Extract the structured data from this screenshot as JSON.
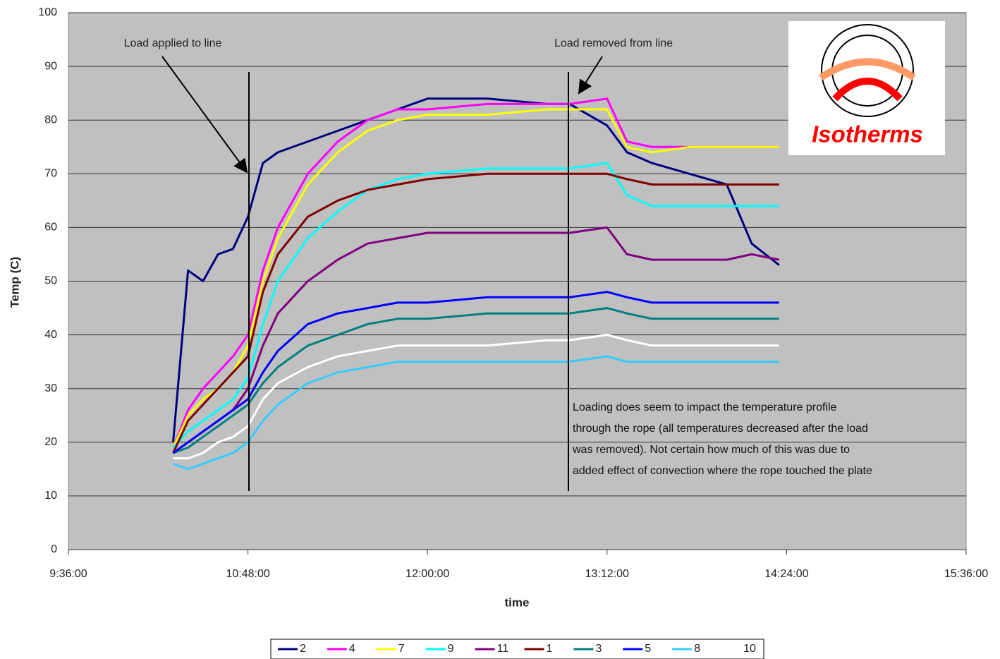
{
  "chart_data": {
    "type": "line",
    "y_label": "Temp (C)",
    "x_label": "time",
    "annotations": [
      "Load applied to line",
      "Load removed from line",
      "Isotherms"
    ],
    "note": [
      "Loading does seem to impact the temperature profile",
      "through the rope (all temperatures decreased after the load",
      "was removed).  Not certain how much of this was due to",
      "added effect of convection where the rope touched the plate"
    ],
    "xlim": [
      "9:36:00",
      "15:36:00"
    ],
    "xticks": [
      "9:36:00",
      "10:48:00",
      "12:00:00",
      "13:12:00",
      "14:24:00",
      "15:36:00"
    ],
    "ylim": [
      0,
      100
    ],
    "yticks": [
      0,
      10,
      20,
      30,
      40,
      50,
      60,
      70,
      80,
      90,
      100
    ],
    "grid": true,
    "legend": "bottom",
    "x": [
      "10:18:00",
      "10:24:00",
      "10:30:00",
      "10:36:00",
      "10:42:00",
      "10:48:00",
      "10:54:00",
      "11:00:00",
      "11:12:00",
      "11:24:00",
      "11:36:00",
      "11:48:00",
      "12:00:00",
      "12:24:00",
      "12:48:00",
      "12:57:00",
      "13:12:00",
      "13:20:00",
      "13:30:00",
      "13:45:00",
      "14:00:00",
      "14:10:00",
      "14:21:00"
    ],
    "series": [
      {
        "name": "2",
        "color": "#000080",
        "values": [
          20,
          52,
          50,
          55,
          56,
          62,
          72,
          74,
          76,
          78,
          80,
          82,
          84,
          84,
          83,
          83,
          79,
          74,
          72,
          70,
          68,
          57,
          53
        ]
      },
      {
        "name": "4",
        "color": "#ff00ff",
        "values": [
          19,
          26,
          30,
          33,
          36,
          40,
          52,
          60,
          70,
          76,
          80,
          82,
          82,
          83,
          83,
          83,
          84,
          76,
          75,
          75,
          75,
          75,
          75
        ]
      },
      {
        "name": "7",
        "color": "#ffff00",
        "values": [
          19,
          25,
          28,
          30,
          33,
          38,
          50,
          58,
          68,
          74,
          78,
          80,
          81,
          81,
          82,
          82,
          82,
          75,
          74,
          75,
          75,
          75,
          75
        ]
      },
      {
        "name": "9",
        "color": "#00ffff",
        "values": [
          19,
          22,
          24,
          26,
          28,
          32,
          42,
          50,
          58,
          63,
          67,
          69,
          70,
          71,
          71,
          71,
          72,
          66,
          64,
          64,
          64,
          64,
          64
        ]
      },
      {
        "name": "11",
        "color": "#800080",
        "values": [
          18,
          20,
          22,
          24,
          26,
          30,
          38,
          44,
          50,
          54,
          57,
          58,
          59,
          59,
          59,
          59,
          60,
          55,
          54,
          54,
          54,
          55,
          54
        ]
      },
      {
        "name": "1",
        "color": "#800000",
        "values": [
          18,
          24,
          27,
          30,
          33,
          36,
          48,
          55,
          62,
          65,
          67,
          68,
          69,
          70,
          70,
          70,
          70,
          69,
          68,
          68,
          68,
          68,
          68
        ]
      },
      {
        "name": "3",
        "color": "#008080",
        "values": [
          18,
          19,
          21,
          23,
          25,
          27,
          31,
          34,
          38,
          40,
          42,
          43,
          43,
          44,
          44,
          44,
          45,
          44,
          43,
          43,
          43,
          43,
          43
        ]
      },
      {
        "name": "5",
        "color": "#0000ff",
        "values": [
          18,
          20,
          22,
          24,
          26,
          28,
          33,
          37,
          42,
          44,
          45,
          46,
          46,
          47,
          47,
          47,
          48,
          47,
          46,
          46,
          46,
          46,
          46
        ]
      },
      {
        "name": "8",
        "color": "#33ccff",
        "values": [
          16,
          15,
          16,
          17,
          18,
          20,
          24,
          27,
          31,
          33,
          34,
          35,
          35,
          35,
          35,
          35,
          36,
          35,
          35,
          35,
          35,
          35,
          35
        ]
      },
      {
        "name": "10",
        "color": "#ffffff",
        "values": [
          17,
          17,
          18,
          20,
          21,
          23,
          28,
          31,
          34,
          36,
          37,
          38,
          38,
          38,
          39,
          39,
          40,
          39,
          38,
          38,
          38,
          38,
          38
        ]
      }
    ]
  }
}
